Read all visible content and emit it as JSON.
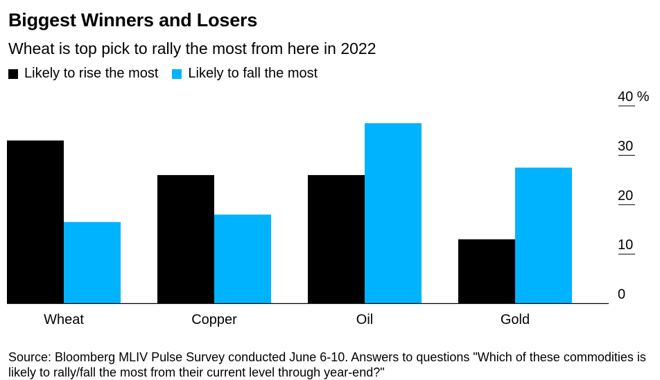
{
  "chart_data": {
    "type": "bar",
    "title": "Biggest Winners and Losers",
    "subtitle": "Wheat is top pick to rally the most from here in 2022",
    "categories": [
      "Wheat",
      "Copper",
      "Oil",
      "Gold"
    ],
    "series": [
      {
        "name": "Likely to rise the most",
        "color": "#000000",
        "values": [
          33,
          26,
          26,
          13
        ]
      },
      {
        "name": "Likely to fall the most",
        "color": "#00b3ff",
        "values": [
          16.5,
          18,
          36.5,
          27.5
        ]
      }
    ],
    "ylim": [
      0,
      40
    ],
    "yticks": [
      0,
      10,
      20,
      30,
      40
    ],
    "ytick_labels": [
      "0",
      "10",
      "20",
      "30",
      "40 %"
    ],
    "yaxis_position": "right",
    "grid": false,
    "legend_position": "top-left",
    "source": "Source: Bloomberg MLIV Pulse Survey conducted June 6-10. Answers to questions \"Which of these commodities is likely to rally/fall the most from their current level through year-end?\""
  }
}
